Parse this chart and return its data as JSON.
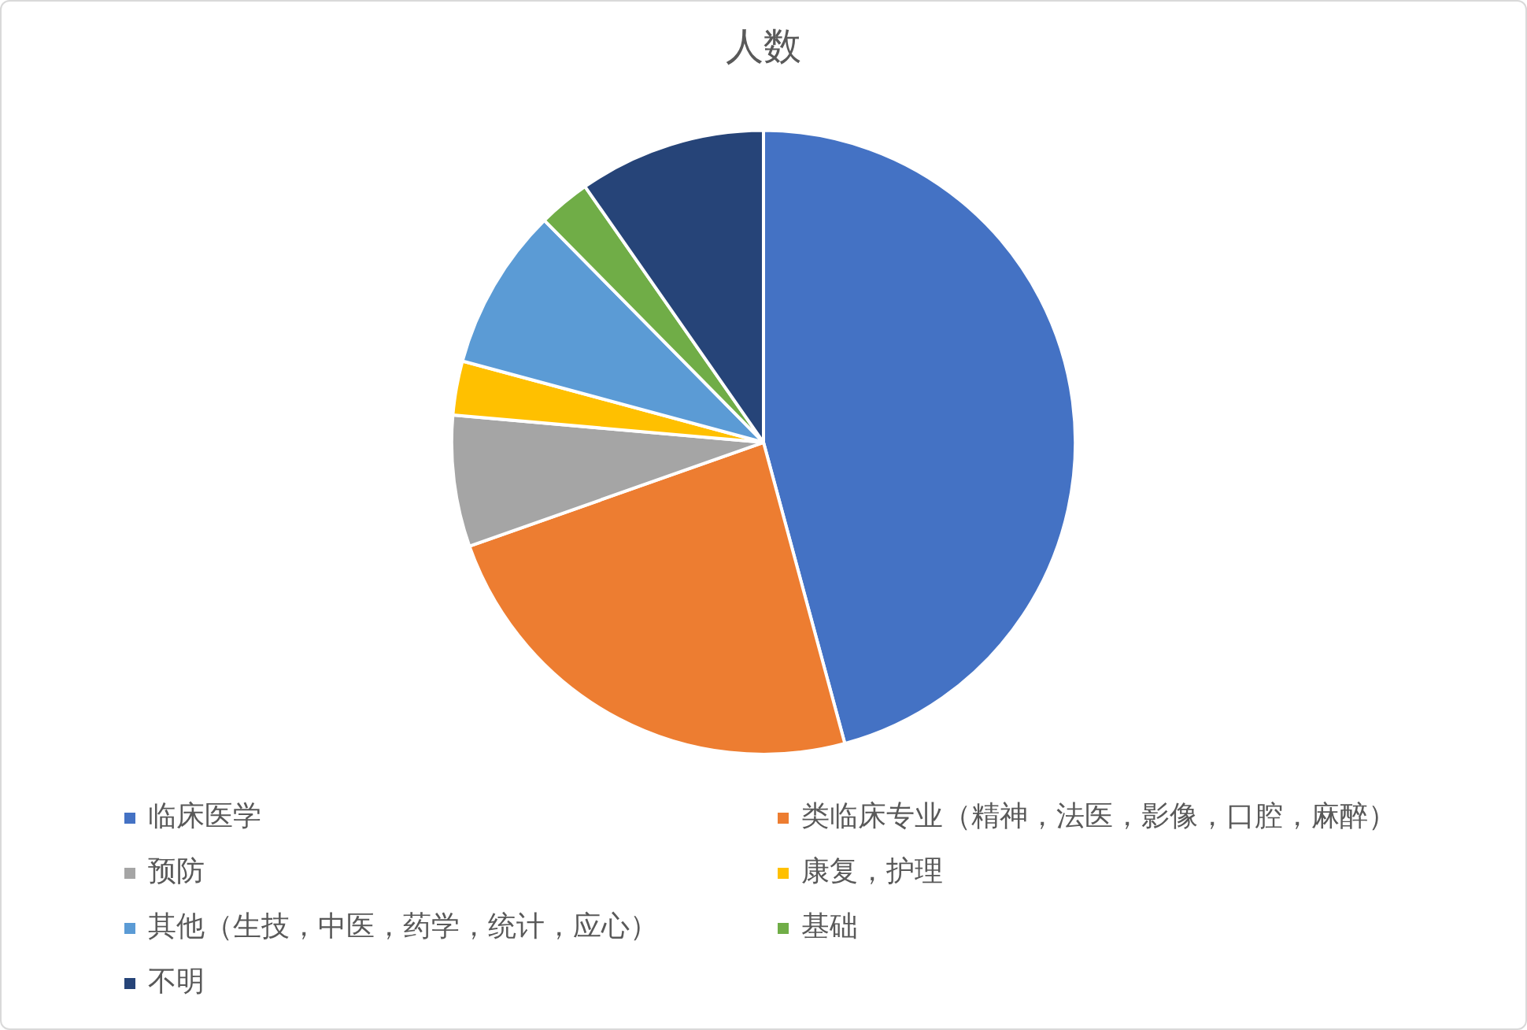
{
  "chart_data": {
    "type": "pie",
    "title": "人数",
    "categories": [
      "临床医学",
      "类临床专业（精神，法医，影像，口腔，麻醉）",
      "预防",
      "康复，护理",
      "其他（生技，中医，药学，统计，应心）",
      "基础",
      "不明"
    ],
    "values": [
      45.8,
      23.8,
      6.8,
      2.8,
      8.4,
      2.7,
      9.7
    ],
    "colors": [
      "#4472c4",
      "#ed7d31",
      "#a5a5a5",
      "#ffc000",
      "#5b9bd5",
      "#70ad47",
      "#264478"
    ],
    "legend": "bottom"
  }
}
